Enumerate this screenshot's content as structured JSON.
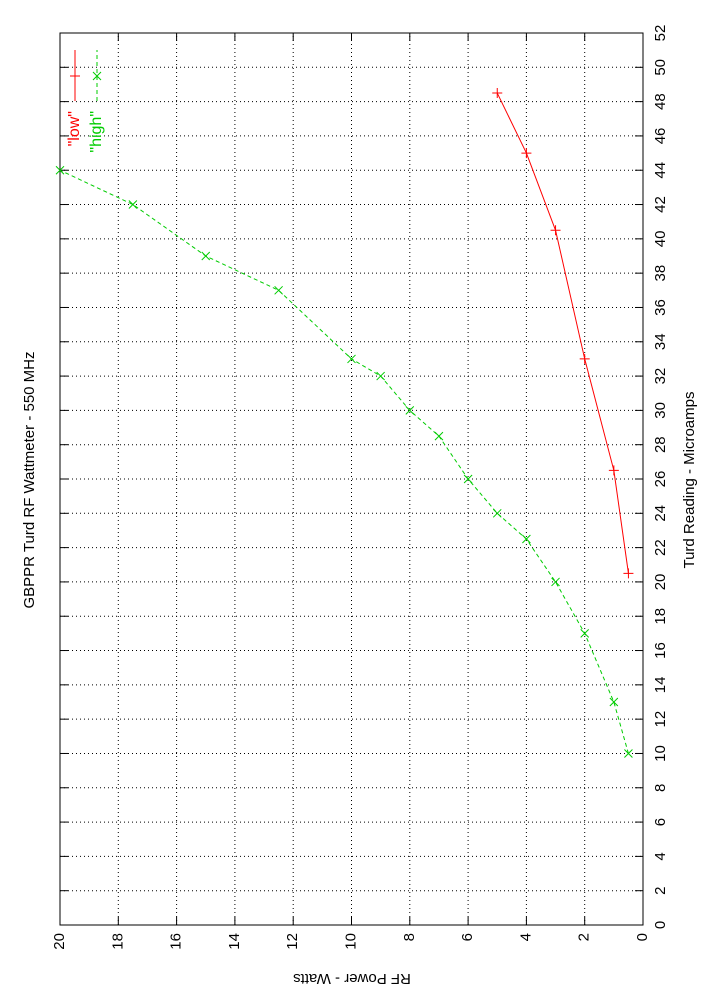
{
  "chart_data": {
    "type": "line",
    "title": "GBPPR Turd RF Wattmeter  -  550 MHz",
    "x_label": "Turd Reading  -  Microamps",
    "y_label": "RF Power  -  Watts",
    "xlim": [
      0,
      52
    ],
    "xticks": [
      0,
      2,
      4,
      6,
      8,
      10,
      12,
      14,
      16,
      18,
      20,
      22,
      24,
      26,
      28,
      30,
      32,
      34,
      36,
      38,
      40,
      42,
      44,
      46,
      48,
      50,
      52
    ],
    "ylim": [
      0,
      20
    ],
    "yticks": [
      0,
      2,
      4,
      6,
      8,
      10,
      12,
      14,
      16,
      18,
      20
    ],
    "grid": true,
    "legend": "top-right",
    "series": [
      {
        "name": "\"low\"",
        "color": "#ff0000",
        "marker": "plus",
        "dashed": false,
        "x": [
          48.5,
          45,
          40.5,
          33,
          26.5,
          20.5
        ],
        "values": [
          5,
          4,
          3,
          2,
          1,
          0.5
        ]
      },
      {
        "name": "\"high\"",
        "color": "#00cc00",
        "marker": "cross",
        "dashed": true,
        "x": [
          10,
          13,
          17,
          20,
          22.5,
          24,
          26,
          28.5,
          30,
          32,
          33,
          37,
          39,
          42,
          44
        ],
        "values": [
          0.5,
          1,
          2,
          3,
          4,
          5,
          6,
          7,
          8,
          9,
          10,
          12.5,
          15,
          17.5,
          20
        ]
      }
    ]
  }
}
